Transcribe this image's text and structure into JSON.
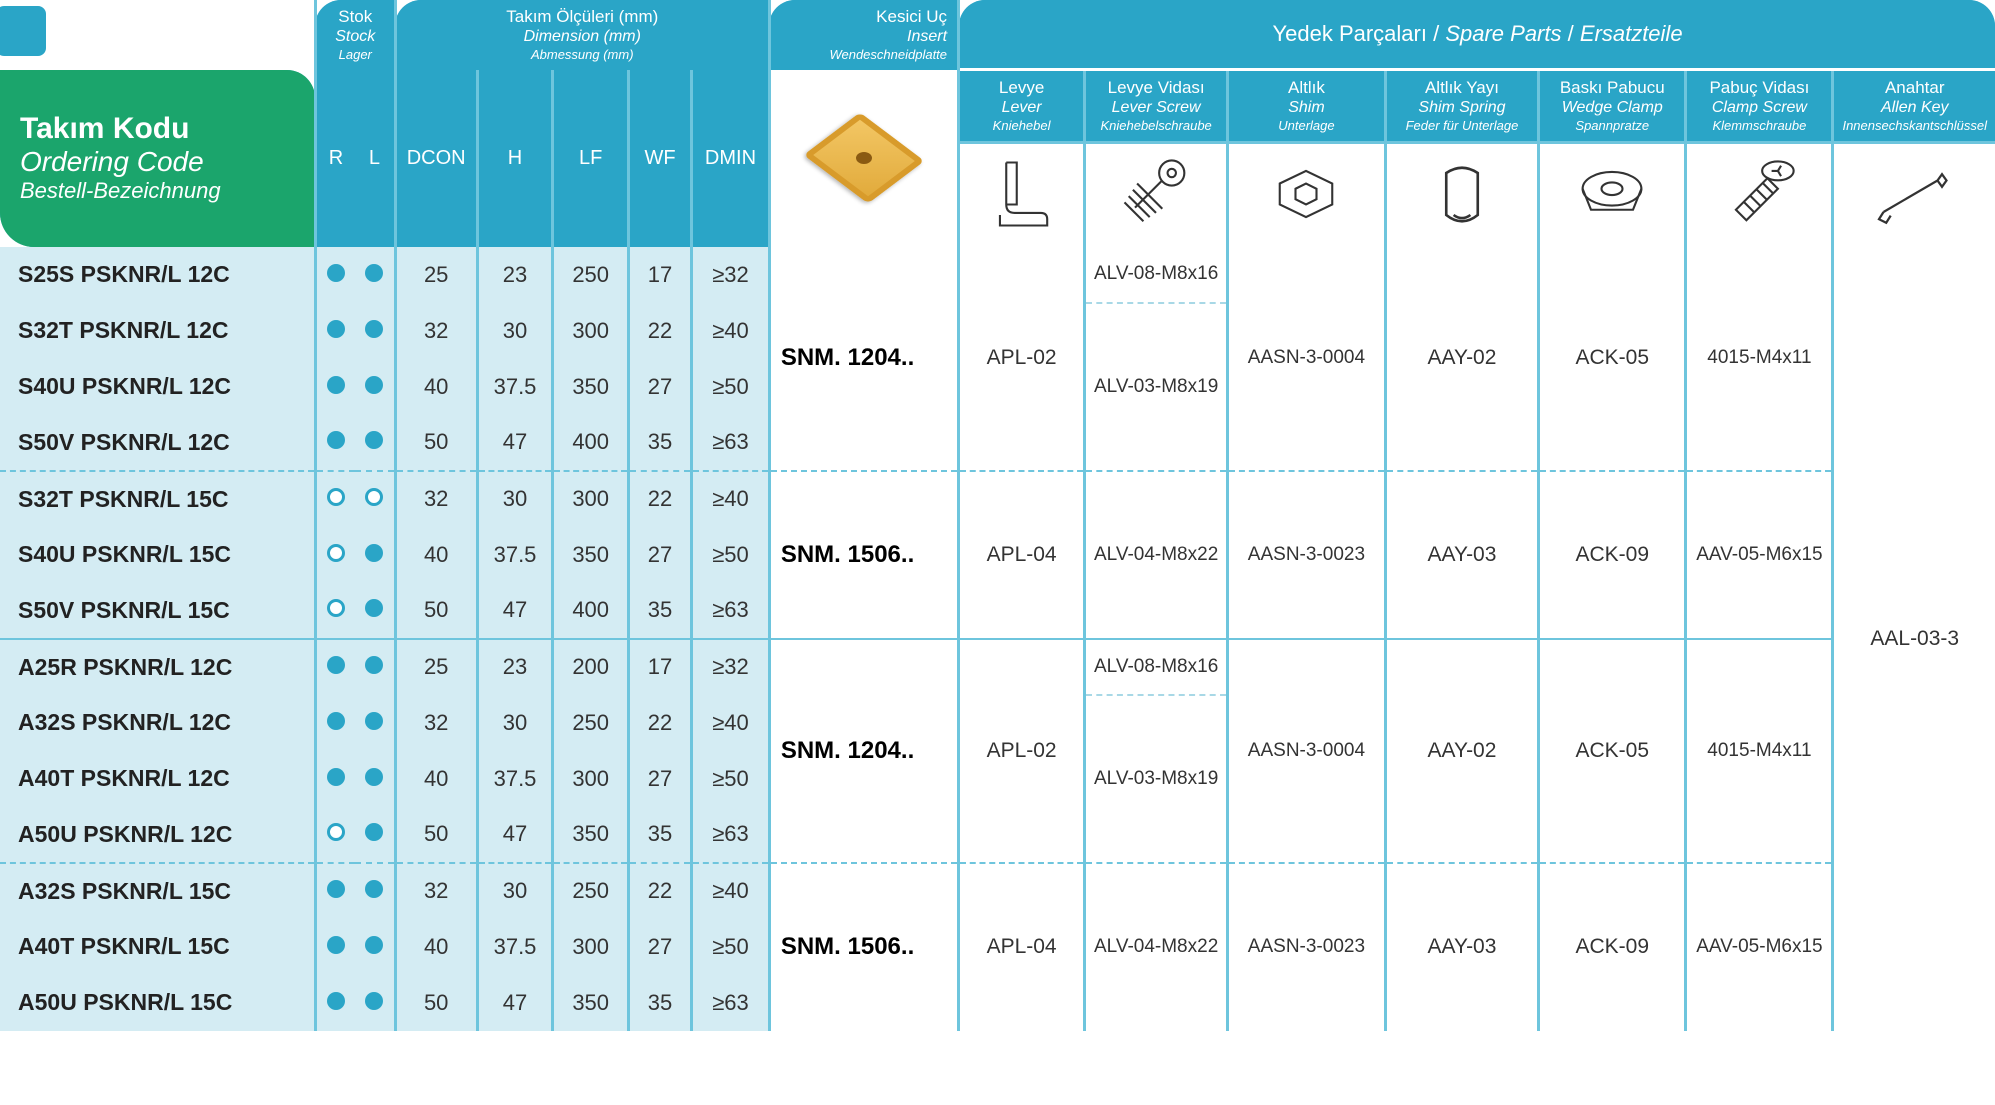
{
  "header": {
    "code_t1": "Takım Kodu",
    "code_t2": "Ordering Code",
    "code_t3": "Bestell-Bezeichnung",
    "stock": {
      "l1": "Stok",
      "l2": "Stock",
      "l3": "Lager"
    },
    "dim": {
      "l1": "Takım Ölçüleri (mm)",
      "l2": "Dimension (mm)",
      "l3": "Abmessung (mm)"
    },
    "insert": {
      "l1": "Kesici Uç",
      "l2": "Insert",
      "l3": "Wendeschneidplatte"
    },
    "spare": {
      "l1": "Yedek Parçaları",
      "l2": "Spare Parts",
      "l3": "Ersatzteile"
    },
    "stock_sub": [
      "R",
      "L"
    ],
    "dim_sub": [
      "DCON",
      "H",
      "LF",
      "WF",
      "DMIN"
    ],
    "parts": [
      {
        "l1": "Levye",
        "l2": "Lever",
        "l3": "Kniehebel"
      },
      {
        "l1": "Levye Vidası",
        "l2": "Lever Screw",
        "l3": "Kniehebelschraube"
      },
      {
        "l1": "Altlık",
        "l2": "Shim",
        "l3": "Unterlage"
      },
      {
        "l1": "Altlık Yayı",
        "l2": "Shim Spring",
        "l3": "Feder für Unterlage"
      },
      {
        "l1": "Baskı Pabucu",
        "l2": "Wedge Clamp",
        "l3": "Spannpratze"
      },
      {
        "l1": "Pabuç Vidası",
        "l2": "Clamp Screw",
        "l3": "Klemmschraube"
      },
      {
        "l1": "Anahtar",
        "l2": "Allen Key",
        "l3": "Innensechskantschlüssel"
      }
    ]
  },
  "rows": [
    {
      "code": "S25S PSKNR/L 12C",
      "r": "f",
      "l": "f",
      "d": [
        "25",
        "23",
        "250",
        "17",
        "≥32"
      ]
    },
    {
      "code": "S32T PSKNR/L 12C",
      "r": "f",
      "l": "f",
      "d": [
        "32",
        "30",
        "300",
        "22",
        "≥40"
      ]
    },
    {
      "code": "S40U PSKNR/L 12C",
      "r": "f",
      "l": "f",
      "d": [
        "40",
        "37.5",
        "350",
        "27",
        "≥50"
      ]
    },
    {
      "code": "S50V PSKNR/L 12C",
      "r": "f",
      "l": "f",
      "d": [
        "50",
        "47",
        "400",
        "35",
        "≥63"
      ]
    },
    {
      "code": "S32T PSKNR/L 15C",
      "r": "e",
      "l": "e",
      "d": [
        "32",
        "30",
        "300",
        "22",
        "≥40"
      ]
    },
    {
      "code": "S40U PSKNR/L 15C",
      "r": "e",
      "l": "f",
      "d": [
        "40",
        "37.5",
        "350",
        "27",
        "≥50"
      ]
    },
    {
      "code": "S50V PSKNR/L 15C",
      "r": "e",
      "l": "f",
      "d": [
        "50",
        "47",
        "400",
        "35",
        "≥63"
      ]
    },
    {
      "code": "A25R PSKNR/L 12C",
      "r": "f",
      "l": "f",
      "d": [
        "25",
        "23",
        "200",
        "17",
        "≥32"
      ]
    },
    {
      "code": "A32S PSKNR/L 12C",
      "r": "f",
      "l": "f",
      "d": [
        "32",
        "30",
        "250",
        "22",
        "≥40"
      ]
    },
    {
      "code": "A40T PSKNR/L 12C",
      "r": "f",
      "l": "f",
      "d": [
        "40",
        "37.5",
        "300",
        "27",
        "≥50"
      ]
    },
    {
      "code": "A50U PSKNR/L 12C",
      "r": "e",
      "l": "f",
      "d": [
        "50",
        "47",
        "350",
        "35",
        "≥63"
      ]
    },
    {
      "code": "A32S PSKNR/L 15C",
      "r": "f",
      "l": "f",
      "d": [
        "32",
        "30",
        "250",
        "22",
        "≥40"
      ]
    },
    {
      "code": "A40T PSKNR/L 15C",
      "r": "f",
      "l": "f",
      "d": [
        "40",
        "37.5",
        "300",
        "27",
        "≥50"
      ]
    },
    {
      "code": "A50U PSKNR/L 15C",
      "r": "f",
      "l": "f",
      "d": [
        "50",
        "47",
        "350",
        "35",
        "≥63"
      ]
    }
  ],
  "groups": [
    {
      "span": 4,
      "insert": "SNM. 1204..",
      "lever": "APL-02",
      "screw_top": "ALV-08-M8x16",
      "screw": "ALV-03-M8x19",
      "shim": "AASN-3-0004",
      "spring": "AAY-02",
      "clamp": "ACK-05",
      "cscrew": "4015-M4x11"
    },
    {
      "span": 3,
      "insert": "SNM. 1506..",
      "lever": "APL-04",
      "screw_top": "",
      "screw": "ALV-04-M8x22",
      "shim": "AASN-3-0023",
      "spring": "AAY-03",
      "clamp": "ACK-09",
      "cscrew": "AAV-05-M6x15"
    },
    {
      "span": 4,
      "insert": "SNM. 1204..",
      "lever": "APL-02",
      "screw_top": "ALV-08-M8x16",
      "screw": "ALV-03-M8x19",
      "shim": "AASN-3-0004",
      "spring": "AAY-02",
      "clamp": "ACK-05",
      "cscrew": "4015-M4x11"
    },
    {
      "span": 3,
      "insert": "SNM. 1506..",
      "lever": "APL-04",
      "screw_top": "",
      "screw": "ALV-04-M8x22",
      "shim": "AASN-3-0023",
      "spring": "AAY-03",
      "clamp": "ACK-09",
      "cscrew": "AAV-05-M6x15"
    }
  ],
  "allen": "AAL-03-3",
  "colors": {
    "teal": "#2aa5c7",
    "green": "#1ba56c",
    "lightblue": "#d4ecf3",
    "sep": "#6ec5dd"
  }
}
